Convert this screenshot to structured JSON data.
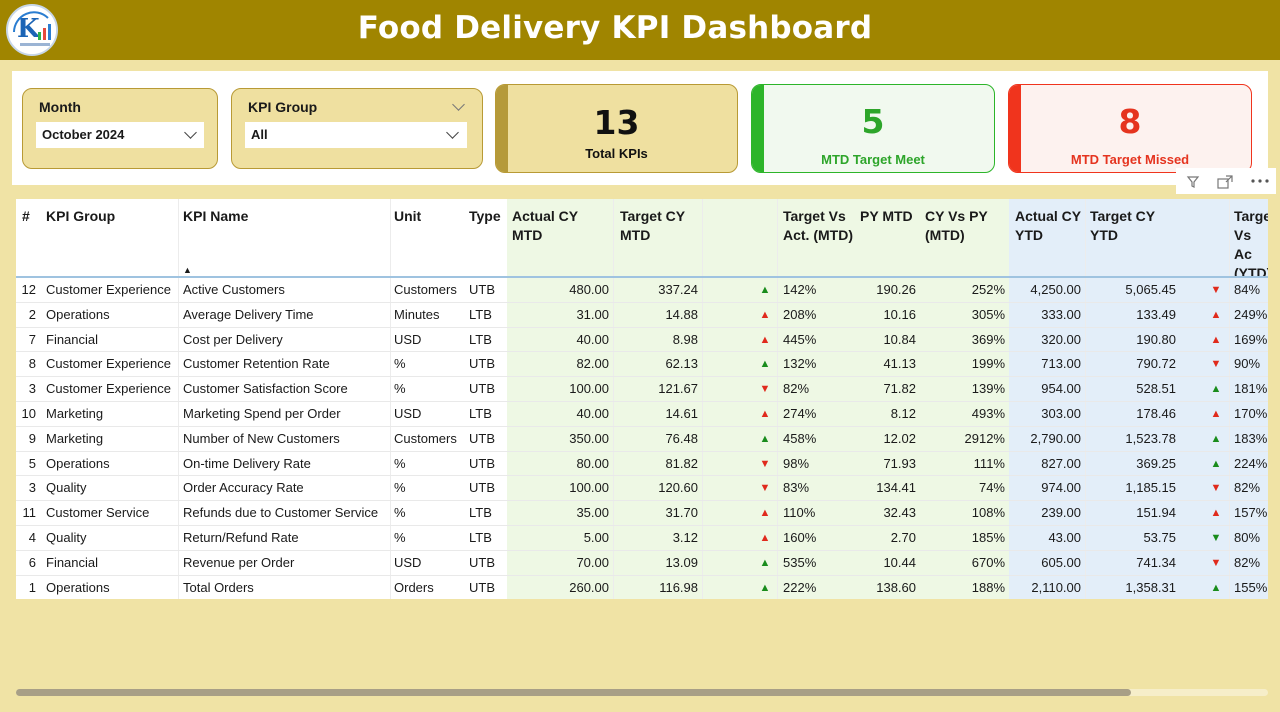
{
  "header": {
    "title": "Food Delivery KPI Dashboard"
  },
  "filters": {
    "month": {
      "label": "Month",
      "value": "October 2024"
    },
    "kpi_group": {
      "label": "KPI Group",
      "value": "All"
    }
  },
  "cards": {
    "total": {
      "value": "13",
      "label": "Total KPIs"
    },
    "meet": {
      "value": "5",
      "label": "MTD Target Meet"
    },
    "missed": {
      "value": "8",
      "label": "MTD Target Missed"
    }
  },
  "colors": {
    "header": "#a08500",
    "card_gold": "#efe0a0",
    "card_green_accent": "#2db52a",
    "card_red_accent": "#f0341d",
    "green_text": "#2da52a",
    "red_text": "#e5341f"
  },
  "table": {
    "columns": [
      "#",
      "KPI Group",
      "KPI Name",
      "Unit",
      "Type",
      "Actual CY MTD",
      "Target CY MTD",
      "Target Vs Act. (MTD)",
      "PY MTD",
      "CY Vs PY (MTD)",
      "Actual CY YTD",
      "Target CY YTD",
      "Targe Vs Ac (YTD)"
    ],
    "rows": [
      {
        "n": "12",
        "group": "Customer Experience",
        "name": "Active Customers",
        "unit": "Customers",
        "type": "UTB",
        "act_mtd": "480.00",
        "tgt_mtd": "337.24",
        "arrow_mtd": "up-g",
        "tva_mtd": "142%",
        "py_mtd": "190.26",
        "cvp_mtd": "252%",
        "act_ytd": "4,250.00",
        "tgt_ytd": "5,065.45",
        "arrow_ytd": "dn-r",
        "tva_ytd": "84%"
      },
      {
        "n": "2",
        "group": "Operations",
        "name": "Average Delivery Time",
        "unit": "Minutes",
        "type": "LTB",
        "act_mtd": "31.00",
        "tgt_mtd": "14.88",
        "arrow_mtd": "up-r",
        "tva_mtd": "208%",
        "py_mtd": "10.16",
        "cvp_mtd": "305%",
        "act_ytd": "333.00",
        "tgt_ytd": "133.49",
        "arrow_ytd": "up-r",
        "tva_ytd": "249%"
      },
      {
        "n": "7",
        "group": "Financial",
        "name": "Cost per Delivery",
        "unit": "USD",
        "type": "LTB",
        "act_mtd": "40.00",
        "tgt_mtd": "8.98",
        "arrow_mtd": "up-r",
        "tva_mtd": "445%",
        "py_mtd": "10.84",
        "cvp_mtd": "369%",
        "act_ytd": "320.00",
        "tgt_ytd": "190.80",
        "arrow_ytd": "up-r",
        "tva_ytd": "169%"
      },
      {
        "n": "8",
        "group": "Customer Experience",
        "name": "Customer Retention Rate",
        "unit": "%",
        "type": "UTB",
        "act_mtd": "82.00",
        "tgt_mtd": "62.13",
        "arrow_mtd": "up-g",
        "tva_mtd": "132%",
        "py_mtd": "41.13",
        "cvp_mtd": "199%",
        "act_ytd": "713.00",
        "tgt_ytd": "790.72",
        "arrow_ytd": "dn-r",
        "tva_ytd": "90%"
      },
      {
        "n": "3",
        "group": "Customer Experience",
        "name": "Customer Satisfaction Score",
        "unit": "%",
        "type": "UTB",
        "act_mtd": "100.00",
        "tgt_mtd": "121.67",
        "arrow_mtd": "dn-r",
        "tva_mtd": "82%",
        "py_mtd": "71.82",
        "cvp_mtd": "139%",
        "act_ytd": "954.00",
        "tgt_ytd": "528.51",
        "arrow_ytd": "up-g",
        "tva_ytd": "181%"
      },
      {
        "n": "10",
        "group": "Marketing",
        "name": "Marketing Spend per Order",
        "unit": "USD",
        "type": "LTB",
        "act_mtd": "40.00",
        "tgt_mtd": "14.61",
        "arrow_mtd": "up-r",
        "tva_mtd": "274%",
        "py_mtd": "8.12",
        "cvp_mtd": "493%",
        "act_ytd": "303.00",
        "tgt_ytd": "178.46",
        "arrow_ytd": "up-r",
        "tva_ytd": "170%"
      },
      {
        "n": "9",
        "group": "Marketing",
        "name": "Number of New Customers",
        "unit": "Customers",
        "type": "UTB",
        "act_mtd": "350.00",
        "tgt_mtd": "76.48",
        "arrow_mtd": "up-g",
        "tva_mtd": "458%",
        "py_mtd": "12.02",
        "cvp_mtd": "2912%",
        "act_ytd": "2,790.00",
        "tgt_ytd": "1,523.78",
        "arrow_ytd": "up-g",
        "tva_ytd": "183%"
      },
      {
        "n": "5",
        "group": "Operations",
        "name": "On-time Delivery Rate",
        "unit": "%",
        "type": "UTB",
        "act_mtd": "80.00",
        "tgt_mtd": "81.82",
        "arrow_mtd": "dn-r",
        "tva_mtd": "98%",
        "py_mtd": "71.93",
        "cvp_mtd": "111%",
        "act_ytd": "827.00",
        "tgt_ytd": "369.25",
        "arrow_ytd": "up-g",
        "tva_ytd": "224%"
      },
      {
        "n": "3",
        "group": "Quality",
        "name": "Order Accuracy Rate",
        "unit": "%",
        "type": "UTB",
        "act_mtd": "100.00",
        "tgt_mtd": "120.60",
        "arrow_mtd": "dn-r",
        "tva_mtd": "83%",
        "py_mtd": "134.41",
        "cvp_mtd": "74%",
        "act_ytd": "974.00",
        "tgt_ytd": "1,185.15",
        "arrow_ytd": "dn-r",
        "tva_ytd": "82%"
      },
      {
        "n": "11",
        "group": "Customer Service",
        "name": "Refunds due to Customer Service",
        "unit": "%",
        "type": "LTB",
        "act_mtd": "35.00",
        "tgt_mtd": "31.70",
        "arrow_mtd": "up-r",
        "tva_mtd": "110%",
        "py_mtd": "32.43",
        "cvp_mtd": "108%",
        "act_ytd": "239.00",
        "tgt_ytd": "151.94",
        "arrow_ytd": "up-r",
        "tva_ytd": "157%"
      },
      {
        "n": "4",
        "group": "Quality",
        "name": "Return/Refund Rate",
        "unit": "%",
        "type": "LTB",
        "act_mtd": "5.00",
        "tgt_mtd": "3.12",
        "arrow_mtd": "up-r",
        "tva_mtd": "160%",
        "py_mtd": "2.70",
        "cvp_mtd": "185%",
        "act_ytd": "43.00",
        "tgt_ytd": "53.75",
        "arrow_ytd": "dn-g",
        "tva_ytd": "80%"
      },
      {
        "n": "6",
        "group": "Financial",
        "name": "Revenue per Order",
        "unit": "USD",
        "type": "UTB",
        "act_mtd": "70.00",
        "tgt_mtd": "13.09",
        "arrow_mtd": "up-g",
        "tva_mtd": "535%",
        "py_mtd": "10.44",
        "cvp_mtd": "670%",
        "act_ytd": "605.00",
        "tgt_ytd": "741.34",
        "arrow_ytd": "dn-r",
        "tva_ytd": "82%"
      },
      {
        "n": "1",
        "group": "Operations",
        "name": "Total Orders",
        "unit": "Orders",
        "type": "UTB",
        "act_mtd": "260.00",
        "tgt_mtd": "116.98",
        "arrow_mtd": "up-g",
        "tva_mtd": "222%",
        "py_mtd": "138.60",
        "cvp_mtd": "188%",
        "act_ytd": "2,110.00",
        "tgt_ytd": "1,358.31",
        "arrow_ytd": "up-g",
        "tva_ytd": "155%"
      }
    ]
  }
}
